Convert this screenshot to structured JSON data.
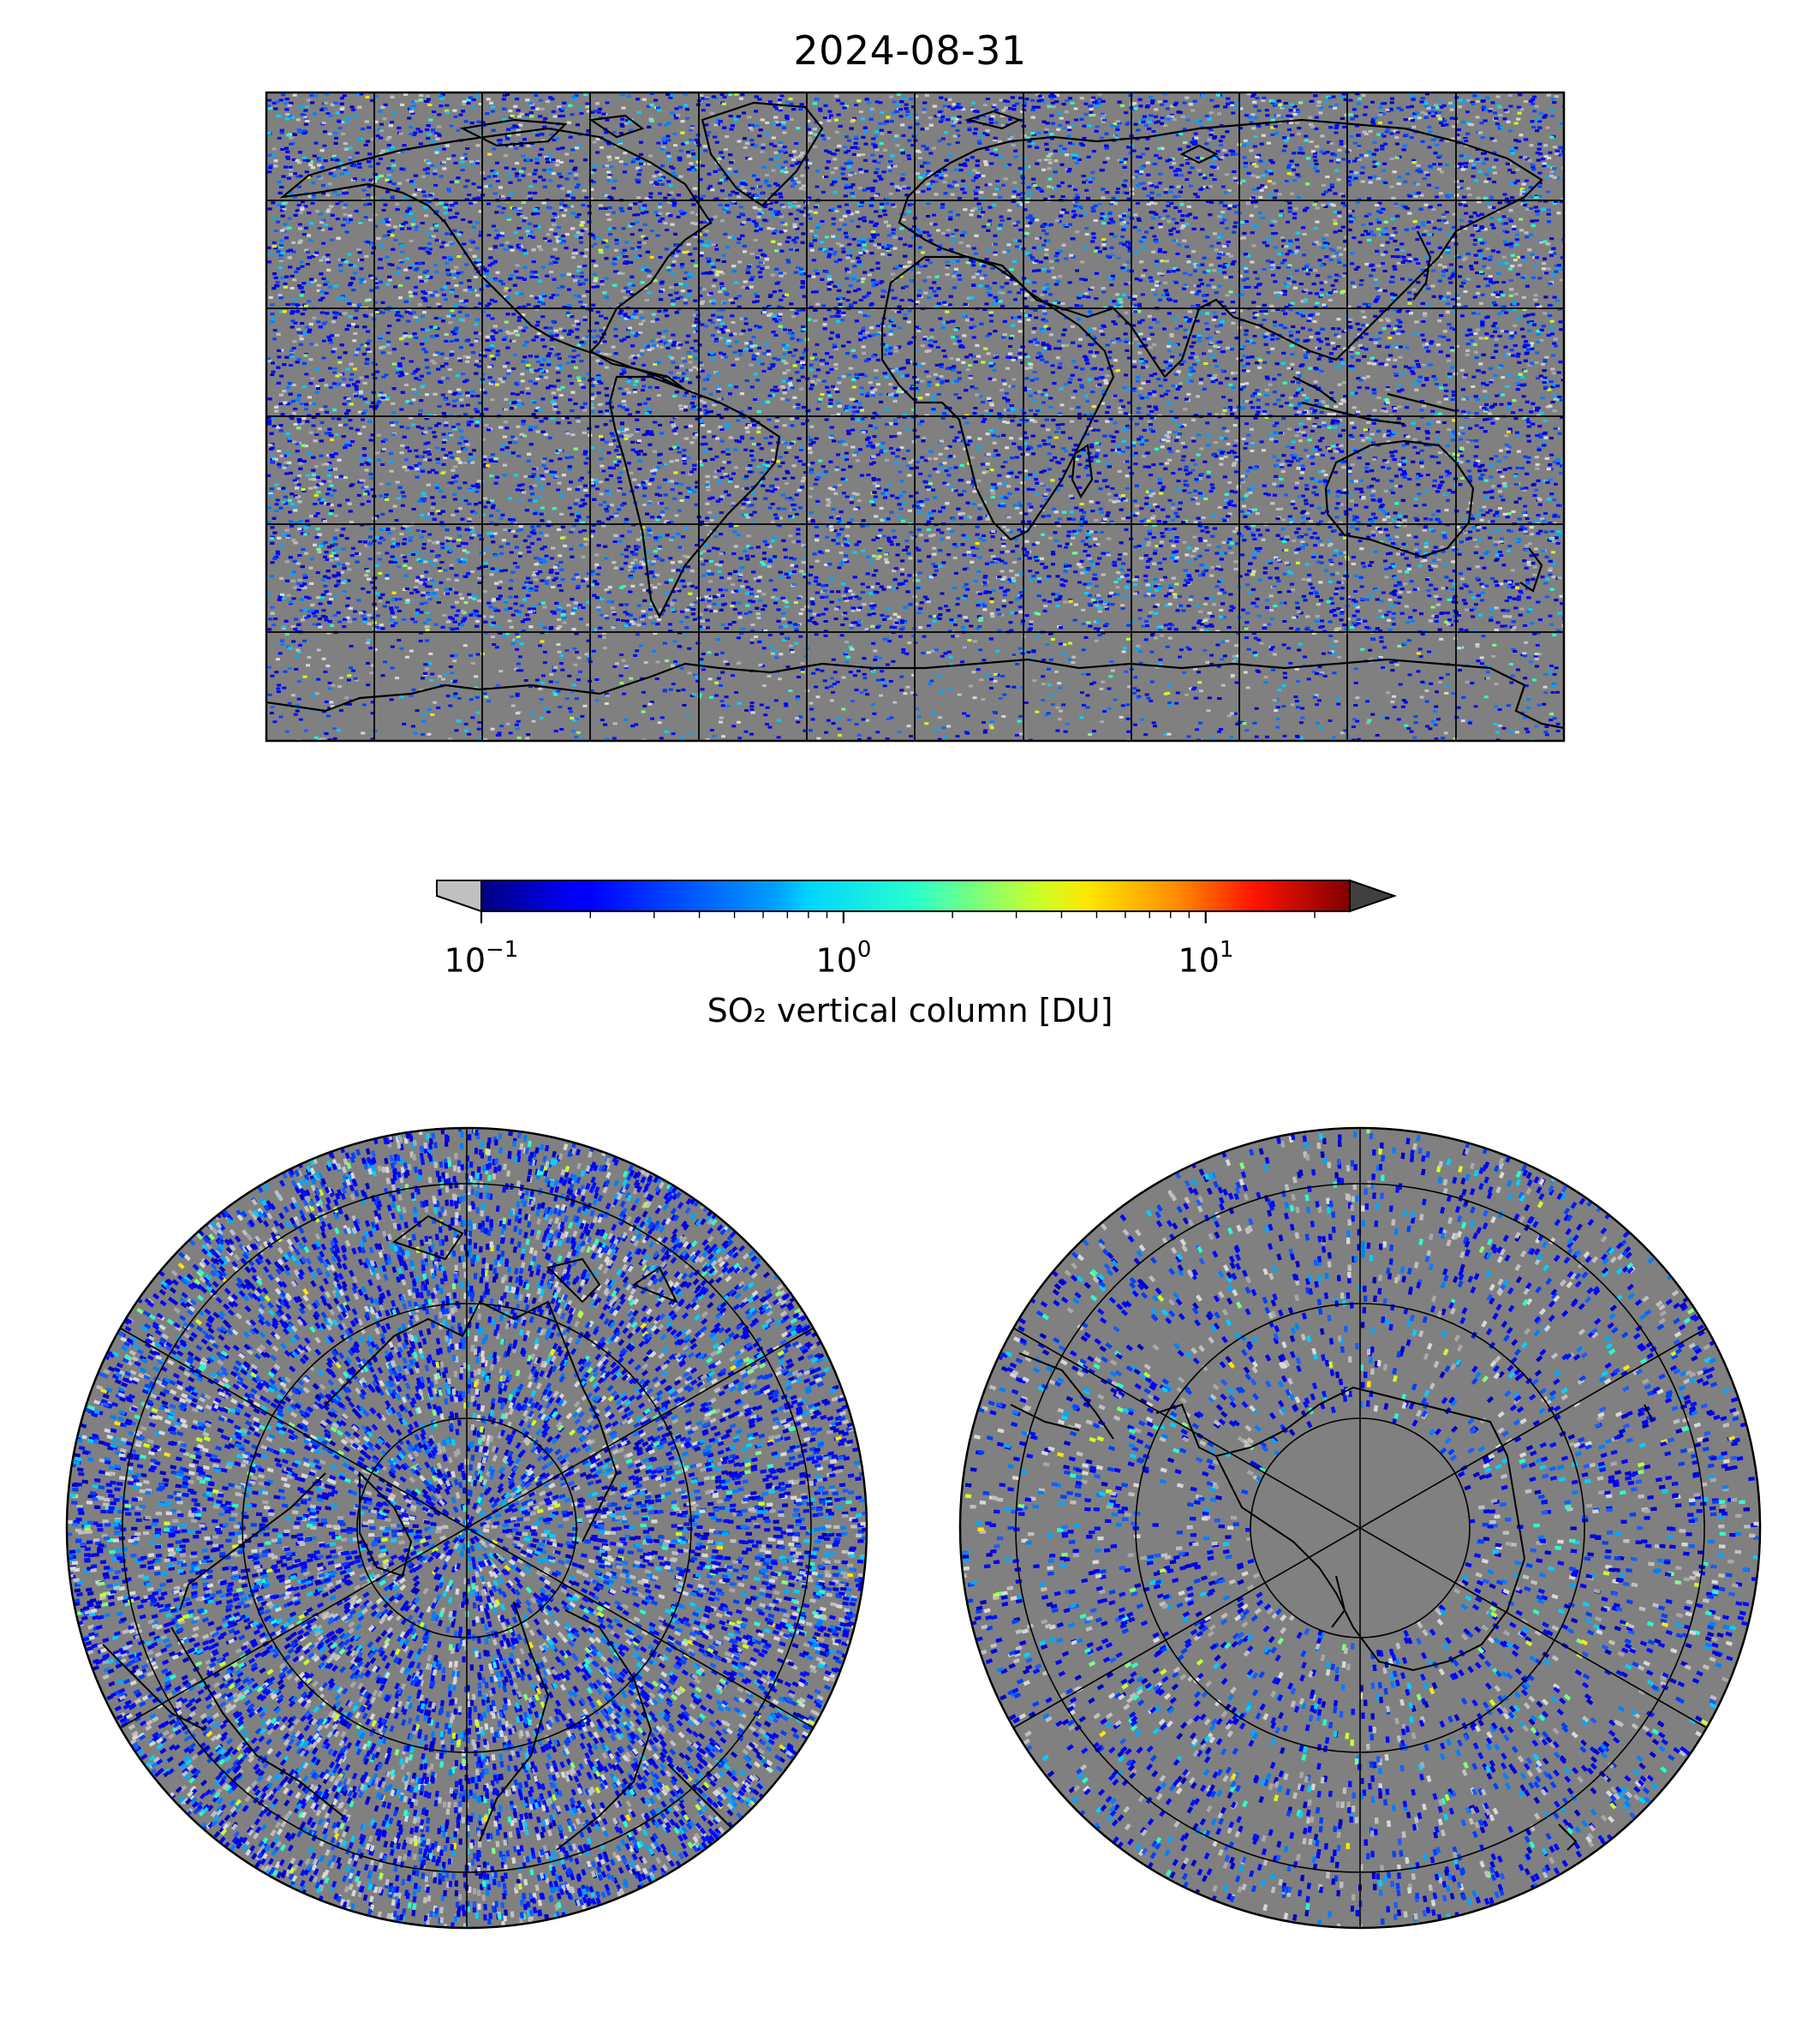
{
  "title": "2024-08-31",
  "colorbar": {
    "label": "SO₂ vertical column [DU]",
    "scale": "log",
    "range": [
      0.1,
      25
    ],
    "extend": "both",
    "colormap": "jet",
    "under_color": "#c0c0c0",
    "over_color": "#404040",
    "ticks": [
      {
        "base": "10",
        "exp": "−1",
        "value": 0.1
      },
      {
        "base": "10",
        "exp": "0",
        "value": 1
      },
      {
        "base": "10",
        "exp": "1",
        "value": 10
      }
    ]
  },
  "maps": {
    "global": {
      "projection": "equirectangular",
      "lon_range": [
        -180,
        180
      ],
      "lat_range": [
        -90,
        90
      ],
      "gridline_spacing_deg": 30,
      "background_color": "#808080"
    },
    "north_polar": {
      "projection": "north polar stereographic",
      "gridline_spacing_deg": 30,
      "background_color": "#808080"
    },
    "south_polar": {
      "projection": "south polar stereographic",
      "gridline_spacing_deg": 30,
      "background_color": "#808080"
    }
  }
}
